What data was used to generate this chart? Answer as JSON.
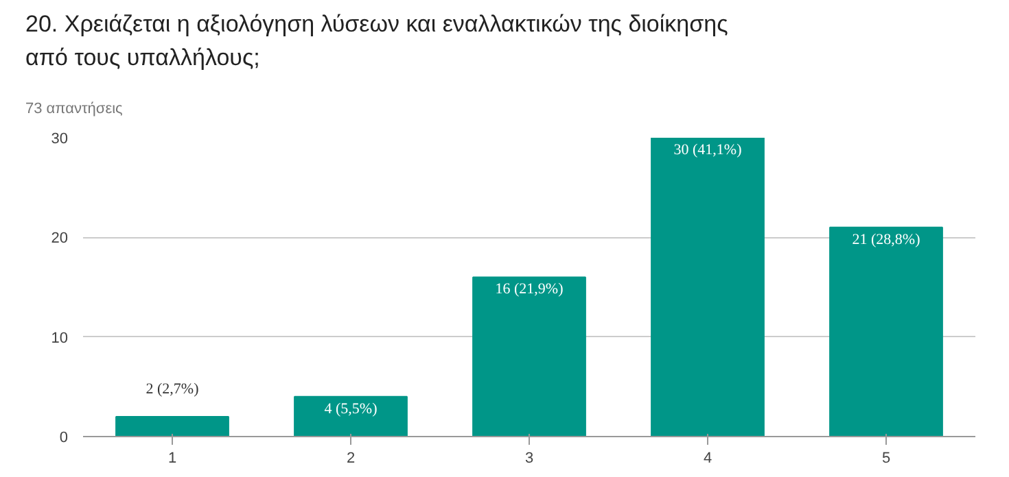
{
  "chart_data": {
    "type": "bar",
    "title": "20. Χρειάζεται η αξιολόγηση λύσεων και εναλλακτικών της διοίκησης από τους υπαλλήλους;",
    "subtitle": "73 απαντήσεις",
    "categories": [
      "1",
      "2",
      "3",
      "4",
      "5"
    ],
    "values": [
      2,
      4,
      16,
      30,
      21
    ],
    "value_labels": [
      "2 (2,7%)",
      "4 (5,5%)",
      "16 (21,9%)",
      "30 (41,1%)",
      "21 (28,8%)"
    ],
    "color": "#009688",
    "ylim": [
      0,
      30
    ],
    "yticks": [
      0,
      10,
      20,
      30
    ],
    "grid": "y"
  }
}
